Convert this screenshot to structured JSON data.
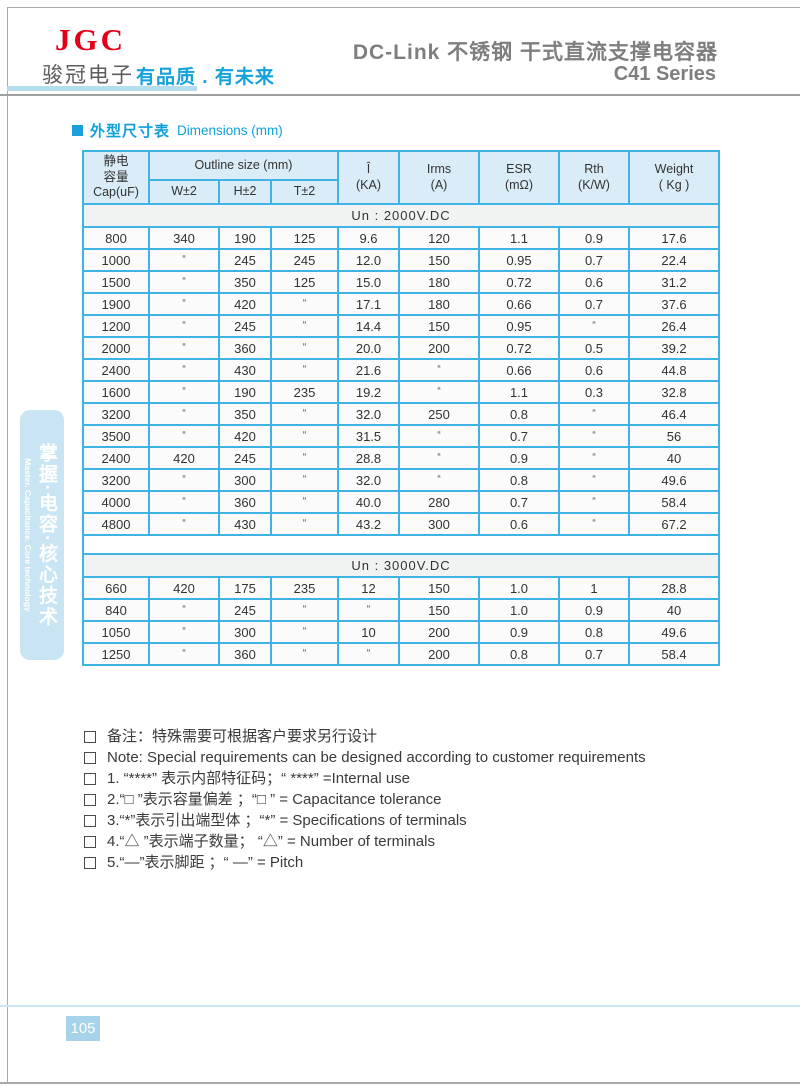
{
  "header": {
    "brand": "JGC",
    "company": "骏冠电子",
    "slogan": "有品质 . 有未来",
    "title_zh": "DC-Link 不锈钢  干式直流支撑电容器",
    "title_en": "C41 Series"
  },
  "section": {
    "title_zh": "外型尺寸表",
    "title_en": "Dimensions  (mm)"
  },
  "table": {
    "headers": {
      "cap": {
        "l1": "静电",
        "l2": "容量",
        "l3": "Cap(uF)"
      },
      "outline": "Outline size (mm)",
      "w": "W±2",
      "h": "H±2",
      "t": "T±2",
      "ihat": {
        "l1": "Î",
        "l2": "(KA)"
      },
      "irms": {
        "l1": "Irms",
        "l2": "(A)"
      },
      "esr": {
        "l1": "ESR",
        "l2": "(mΩ)"
      },
      "rth": {
        "l1": "Rth",
        "l2": "(K/W)"
      },
      "weight": {
        "l1": "Weight",
        "l2": "( Kg )"
      }
    },
    "ditto_mark": "“",
    "sections": [
      {
        "label": "Un : 2000V.DC",
        "rows": [
          [
            "800",
            "340",
            "190",
            "125",
            "9.6",
            "120",
            "1.1",
            "0.9",
            "17.6"
          ],
          [
            "1000",
            "“",
            "245",
            "245",
            "12.0",
            "150",
            "0.95",
            "0.7",
            "22.4"
          ],
          [
            "1500",
            "“",
            "350",
            "125",
            "15.0",
            "180",
            "0.72",
            "0.6",
            "31.2"
          ],
          [
            "1900",
            "“",
            "420",
            "“",
            "17.1",
            "180",
            "0.66",
            "0.7",
            "37.6"
          ],
          [
            "1200",
            "“",
            "245",
            "“",
            "14.4",
            "150",
            "0.95",
            "“",
            "26.4"
          ],
          [
            "2000",
            "“",
            "360",
            "“",
            "20.0",
            "200",
            "0.72",
            "0.5",
            "39.2"
          ],
          [
            "2400",
            "“",
            "430",
            "“",
            "21.6",
            "“",
            "0.66",
            "0.6",
            "44.8"
          ],
          [
            "1600",
            "“",
            "190",
            "235",
            "19.2",
            "“",
            "1.1",
            "0.3",
            "32.8"
          ],
          [
            "3200",
            "“",
            "350",
            "“",
            "32.0",
            "250",
            "0.8",
            "“",
            "46.4"
          ],
          [
            "3500",
            "“",
            "420",
            "“",
            "31.5",
            "“",
            "0.7",
            "“",
            "56"
          ],
          [
            "2400",
            "420",
            "245",
            "“",
            "28.8",
            "“",
            "0.9",
            "“",
            "40"
          ],
          [
            "3200",
            "“",
            "300",
            "“",
            "32.0",
            "“",
            "0.8",
            "“",
            "49.6"
          ],
          [
            "4000",
            "“",
            "360",
            "“",
            "40.0",
            "280",
            "0.7",
            "“",
            "58.4"
          ],
          [
            "4800",
            "“",
            "430",
            "“",
            "43.2",
            "300",
            "0.6",
            "“",
            "67.2"
          ]
        ]
      },
      {
        "label": "Un : 3000V.DC",
        "rows": [
          [
            "660",
            "420",
            "175",
            "235",
            "12",
            "150",
            "1.0",
            "1",
            "28.8"
          ],
          [
            "840",
            "“",
            "245",
            "“",
            "“",
            "150",
            "1.0",
            "0.9",
            "40"
          ],
          [
            "1050",
            "“",
            "300",
            "“",
            "10",
            "200",
            "0.9",
            "0.8",
            "49.6"
          ],
          [
            "1250",
            "“",
            "360",
            "“",
            "“",
            "200",
            "0.8",
            "0.7",
            "58.4"
          ]
        ]
      }
    ]
  },
  "notes": [
    "备注：特殊需要可根据客户要求另行设计",
    "Note: Special requirements can be designed according to customer requirements",
    "1. “****” 表示内部特征码；“ ****” =Internal use",
    "2.“□ ”表示容量偏差 ；“□ ” = Capacitance tolerance",
    "3.“*”表示引出端型体 ；“*” = Specifications of terminals",
    "4.“△ ”表示端子数量； “△” = Number of terminals",
    "5.“—”表示脚距 ；“ —” = Pitch"
  ],
  "sidebar": {
    "zh": "掌握·电容·核心技术",
    "en": "Master. Capacitance. Core technology"
  },
  "footer": {
    "page_number": "105"
  },
  "colors": {
    "brand_red": "#e30016",
    "accent_cyan": "#14a2dc",
    "table_border": "#3fb3e4",
    "table_header_bg": "#d9ecf7",
    "title_gray": "#7e7e7e",
    "sidebar_bg": "#c9e5f4",
    "page_badge_bg": "#a6d3ea"
  }
}
